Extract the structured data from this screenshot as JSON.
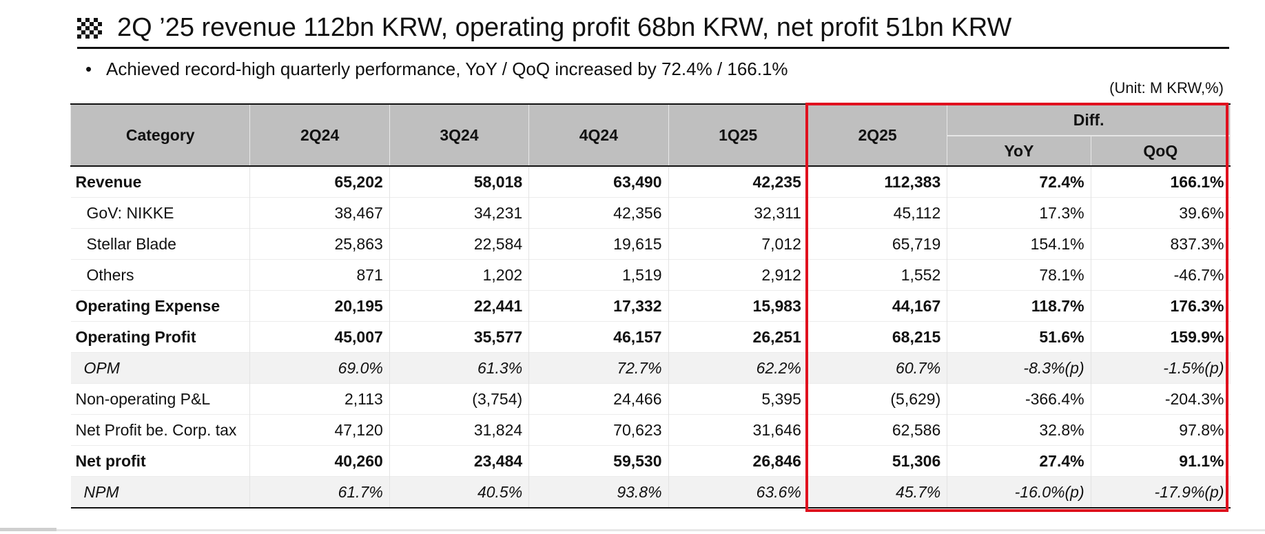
{
  "title": "2Q ’25 revenue 112bn KRW, operating profit 68bn KRW, net profit 51bn KRW",
  "bullet": "Achieved record-high quarterly performance, YoY / QoQ  increased by 72.4% / 166.1%",
  "unit": "(Unit: M KRW,%)",
  "table": {
    "headers": {
      "category": "Category",
      "q1": "2Q24",
      "q2": "3Q24",
      "q3": "4Q24",
      "q4": "1Q25",
      "q5": "2Q25",
      "diff": "Diff.",
      "yoy": "YoY",
      "qoq": "QoQ"
    },
    "rows": [
      {
        "label": "Revenue",
        "cells": [
          "65,202",
          "58,018",
          "63,490",
          "42,235",
          "112,383",
          "72.4%",
          "166.1%"
        ]
      },
      {
        "label": "GoV: NIKKE",
        "cells": [
          "38,467",
          "34,231",
          "42,356",
          "32,311",
          "45,112",
          "17.3%",
          "39.6%"
        ]
      },
      {
        "label": "Stellar Blade",
        "cells": [
          "25,863",
          "22,584",
          "19,615",
          "7,012",
          "65,719",
          "154.1%",
          "837.3%"
        ]
      },
      {
        "label": "Others",
        "cells": [
          "871",
          "1,202",
          "1,519",
          "2,912",
          "1,552",
          "78.1%",
          "-46.7%"
        ]
      },
      {
        "label": "Operating Expense",
        "cells": [
          "20,195",
          "22,441",
          "17,332",
          "15,983",
          "44,167",
          "118.7%",
          "176.3%"
        ]
      },
      {
        "label": "Operating Profit",
        "cells": [
          "45,007",
          "35,577",
          "46,157",
          "26,251",
          "68,215",
          "51.6%",
          "159.9%"
        ]
      },
      {
        "label": "OPM",
        "cells": [
          "69.0%",
          "61.3%",
          "72.7%",
          "62.2%",
          "60.7%",
          "-8.3%(p)",
          "-1.5%(p)"
        ]
      },
      {
        "label": "Non-operating P&L",
        "cells": [
          "2,113",
          "(3,754)",
          "24,466",
          "5,395",
          "(5,629)",
          "-366.4%",
          "-204.3%"
        ]
      },
      {
        "label": "Net Profit be. Corp. tax",
        "cells": [
          "47,120",
          "31,824",
          "70,623",
          "31,646",
          "62,586",
          "32.8%",
          "97.8%"
        ]
      },
      {
        "label": "Net profit",
        "cells": [
          "40,260",
          "23,484",
          "59,530",
          "26,846",
          "51,306",
          "27.4%",
          "91.1%"
        ]
      },
      {
        "label": "NPM",
        "cells": [
          "61.7%",
          "40.5%",
          "93.8%",
          "63.6%",
          "45.7%",
          "-16.0%(p)",
          "-17.9%(p)"
        ]
      }
    ]
  },
  "colors": {
    "header_bg": "#bfbfbf",
    "highlight_border": "#e0101e",
    "italic_row_bg": "#f2f2f2"
  },
  "icons": {
    "title_icon": "checkered-flag-icon"
  }
}
